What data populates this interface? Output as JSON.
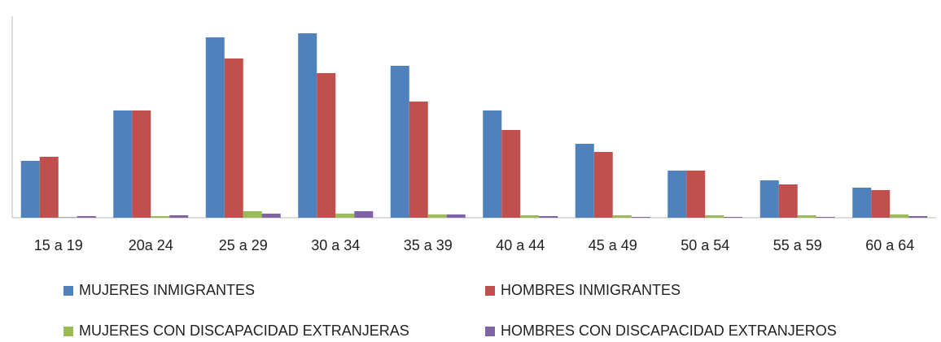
{
  "chart_data": {
    "type": "bar",
    "categories": [
      "15 a 19",
      "20a 24",
      "25 a 29",
      "30 a 34",
      "35 a 39",
      "40 a 44",
      "45 a 49",
      "50 a 54",
      "55 a 59",
      "60 a 64"
    ],
    "series": [
      {
        "name": "MUJERES INMIGRANTES",
        "color": "#4f81bd",
        "values": [
          70,
          132,
          222,
          227,
          187,
          132,
          91,
          58,
          46,
          37
        ]
      },
      {
        "name": "HOMBRES INMIGRANTES",
        "color": "#c0504d",
        "values": [
          75,
          132,
          196,
          178,
          143,
          108,
          81,
          58,
          41,
          34
        ]
      },
      {
        "name": "MUJERES CON DISCAPACIDAD EXTRANJERAS",
        "color": "#9bbb59",
        "values": [
          1,
          2,
          8,
          5,
          4,
          3,
          3,
          3,
          3,
          4
        ]
      },
      {
        "name": "HOMBRES CON DISCAPACIDAD EXTRANJEROS",
        "color": "#8064a2",
        "values": [
          2,
          3,
          5,
          8,
          4,
          2,
          1,
          1,
          1,
          2
        ]
      }
    ],
    "ylim": [
      0,
      230
    ]
  }
}
